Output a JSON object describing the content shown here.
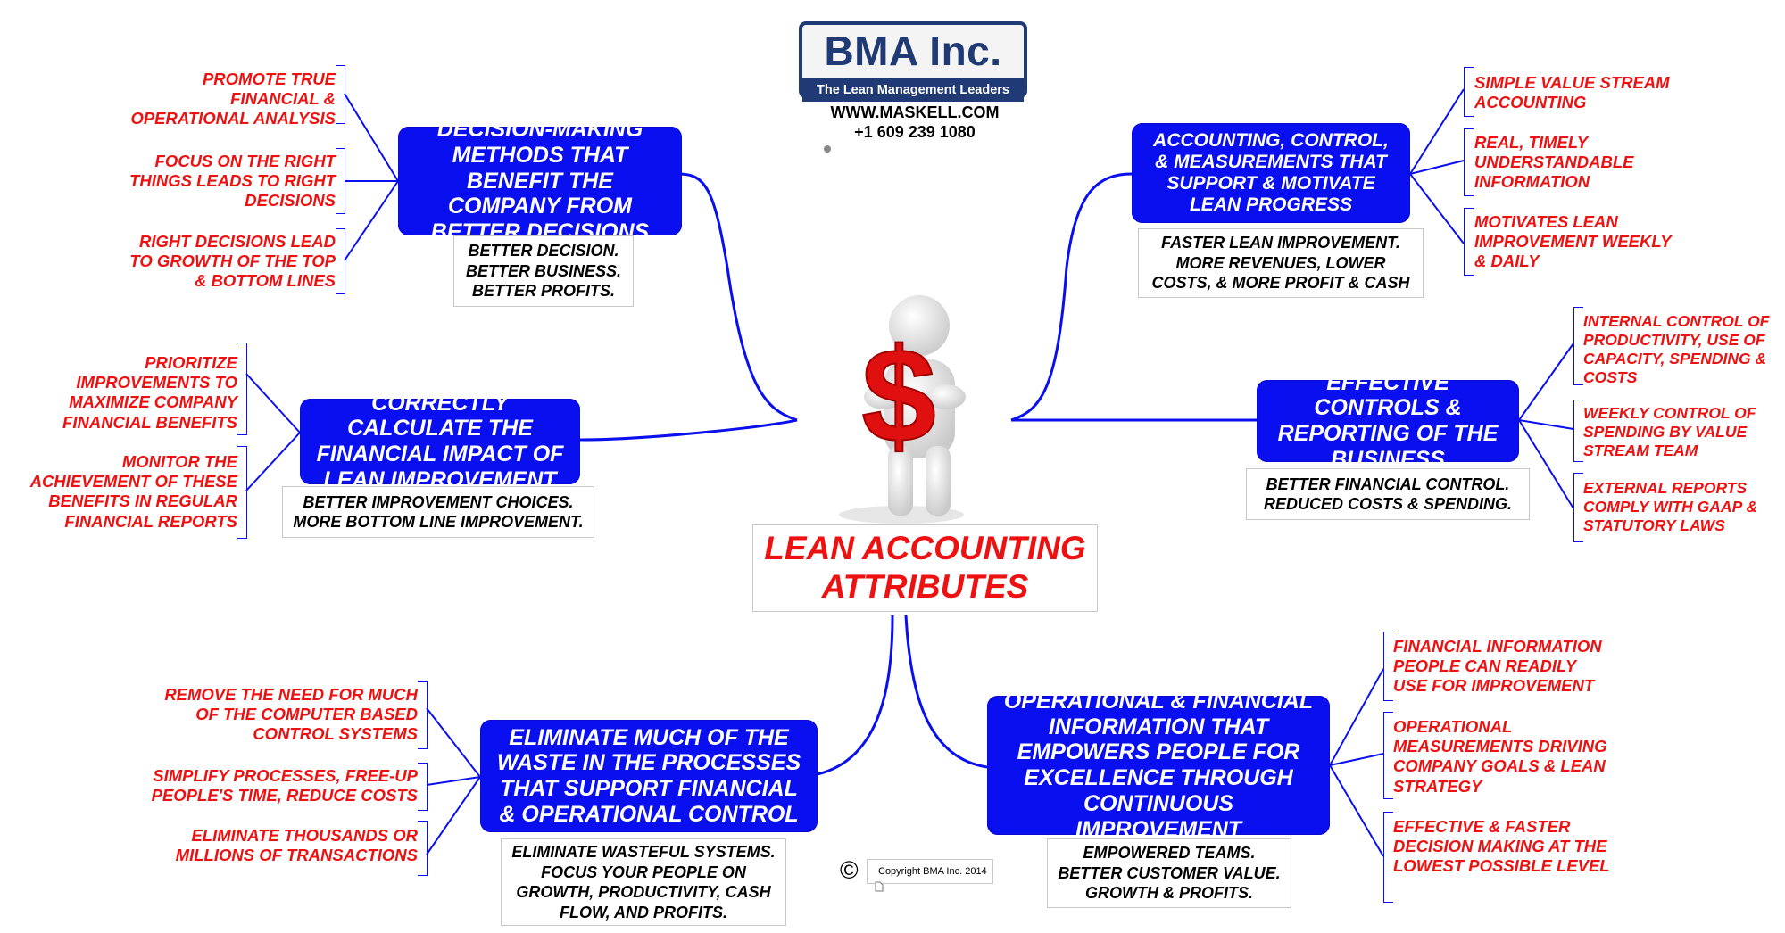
{
  "logo": {
    "name": "BMA Inc.",
    "tagline": "The Lean Management Leaders"
  },
  "contact": {
    "website": "WWW.MASKELL.COM",
    "phone": "+1 609 239 1080"
  },
  "center_title": "LEAN ACCOUNTING ATTRIBUTES",
  "center_icon": "figure-holding-dollar-sign",
  "copyright": {
    "symbol": "©",
    "text": "Copyright BMA Inc. 2014"
  },
  "colors": {
    "node_blue": "#0a0ff0",
    "leaf_red": "#ee1111",
    "logo_navy": "#1f3a75"
  },
  "branches": {
    "decision_making": {
      "title": "DECISION-MAKING METHODS THAT BENEFIT THE COMPANY FROM BETTER DECISIONS",
      "note": [
        "BETTER DECISION.",
        "BETTER BUSINESS.",
        "BETTER PROFITS."
      ],
      "leaves": [
        [
          "PROMOTE TRUE",
          "FINANCIAL &",
          "OPERATIONAL ANALYSIS"
        ],
        [
          "FOCUS ON THE RIGHT",
          "THINGS LEADS TO RIGHT",
          "DECISIONS"
        ],
        [
          "RIGHT DECISIONS LEAD",
          "TO GROWTH OF THE TOP",
          "& BOTTOM LINES"
        ]
      ]
    },
    "financial_impact": {
      "title": "CORRECTLY CALCULATE THE FINANCIAL IMPACT OF LEAN IMPROVEMENT",
      "note": [
        "BETTER IMPROVEMENT CHOICES.",
        "MORE BOTTOM LINE IMPROVEMENT."
      ],
      "leaves": [
        [
          "PRIORITIZE",
          "IMPROVEMENTS TO",
          "MAXIMIZE COMPANY",
          "FINANCIAL BENEFITS"
        ],
        [
          "MONITOR THE",
          "ACHIEVEMENT OF THESE",
          "BENEFITS IN REGULAR",
          "FINANCIAL REPORTS"
        ]
      ]
    },
    "eliminate_waste": {
      "title": "ELIMINATE MUCH OF THE WASTE IN THE PROCESSES THAT SUPPORT FINANCIAL & OPERATIONAL CONTROL",
      "note": [
        "ELIMINATE WASTEFUL SYSTEMS.",
        "FOCUS YOUR PEOPLE ON",
        "GROWTH, PRODUCTIVITY, CASH",
        "FLOW, AND PROFITS."
      ],
      "leaves": [
        [
          "REMOVE THE NEED FOR MUCH",
          "OF THE COMPUTER BASED",
          "CONTROL SYSTEMS"
        ],
        [
          "SIMPLIFY PROCESSES, FREE-UP",
          "PEOPLE'S TIME, REDUCE COSTS"
        ],
        [
          "ELIMINATE THOUSANDS OR",
          "MILLIONS OF TRANSACTIONS"
        ]
      ]
    },
    "accounting_control": {
      "title": "ACCOUNTING, CONTROL, & MEASUREMENTS THAT SUPPORT & MOTIVATE LEAN PROGRESS",
      "note": [
        "FASTER LEAN IMPROVEMENT.",
        "MORE REVENUES, LOWER",
        "COSTS, & MORE PROFIT & CASH"
      ],
      "leaves": [
        [
          "SIMPLE VALUE STREAM",
          "ACCOUNTING"
        ],
        [
          "REAL, TIMELY",
          "UNDERSTANDABLE",
          "INFORMATION"
        ],
        [
          "MOTIVATES LEAN",
          "IMPROVEMENT WEEKLY",
          "& DAILY"
        ]
      ]
    },
    "effective_controls": {
      "title": "EFFECTIVE CONTROLS & REPORTING OF THE BUSINESS",
      "note": [
        "BETTER FINANCIAL CONTROL.",
        "REDUCED COSTS & SPENDING."
      ],
      "leaves": [
        [
          "INTERNAL CONTROL OF",
          "PRODUCTIVITY, USE OF",
          "CAPACITY, SPENDING &",
          "COSTS"
        ],
        [
          "WEEKLY CONTROL OF",
          "SPENDING BY VALUE",
          "STREAM TEAM"
        ],
        [
          "EXTERNAL REPORTS",
          "COMPLY WITH GAAP &",
          "STATUTORY LAWS"
        ]
      ]
    },
    "operational_financial": {
      "title": "OPERATIONAL & FINANCIAL INFORMATION THAT EMPOWERS PEOPLE FOR EXCELLENCE THROUGH CONTINUOUS IMPROVEMENT",
      "note": [
        "EMPOWERED TEAMS.",
        "BETTER CUSTOMER VALUE.",
        "GROWTH & PROFITS."
      ],
      "leaves": [
        [
          "FINANCIAL INFORMATION",
          "PEOPLE CAN READILY",
          "USE FOR IMPROVEMENT"
        ],
        [
          "OPERATIONAL",
          "MEASUREMENTS DRIVING",
          "COMPANY GOALS & LEAN",
          "STRATEGY"
        ],
        [
          "EFFECTIVE & FASTER",
          "DECISION MAKING AT THE",
          "LOWEST POSSIBLE LEVEL"
        ]
      ]
    }
  }
}
